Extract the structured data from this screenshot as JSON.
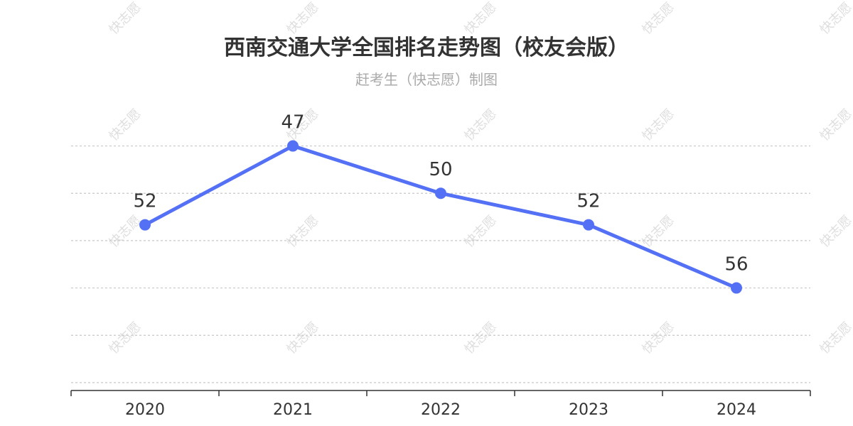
{
  "chart_data": {
    "type": "line",
    "title": "西南交通大学全国排名走势图（校友会版）",
    "subtitle": "赶考生（快志愿）制图",
    "watermark": "快志愿",
    "categories": [
      "2020",
      "2021",
      "2022",
      "2023",
      "2024"
    ],
    "series": [
      {
        "values": [
          52,
          47,
          50,
          52,
          56
        ],
        "color": "#5470f5"
      }
    ],
    "y_inverted": true,
    "ylim": [
      44.5,
      62.5
    ],
    "y_gridlines": [
      47,
      50,
      53,
      56,
      59,
      62
    ],
    "y_tick_labels_visible": false,
    "grid": true,
    "grid_style": "dashed",
    "legend": "none",
    "xlabel": "",
    "ylabel": ""
  }
}
